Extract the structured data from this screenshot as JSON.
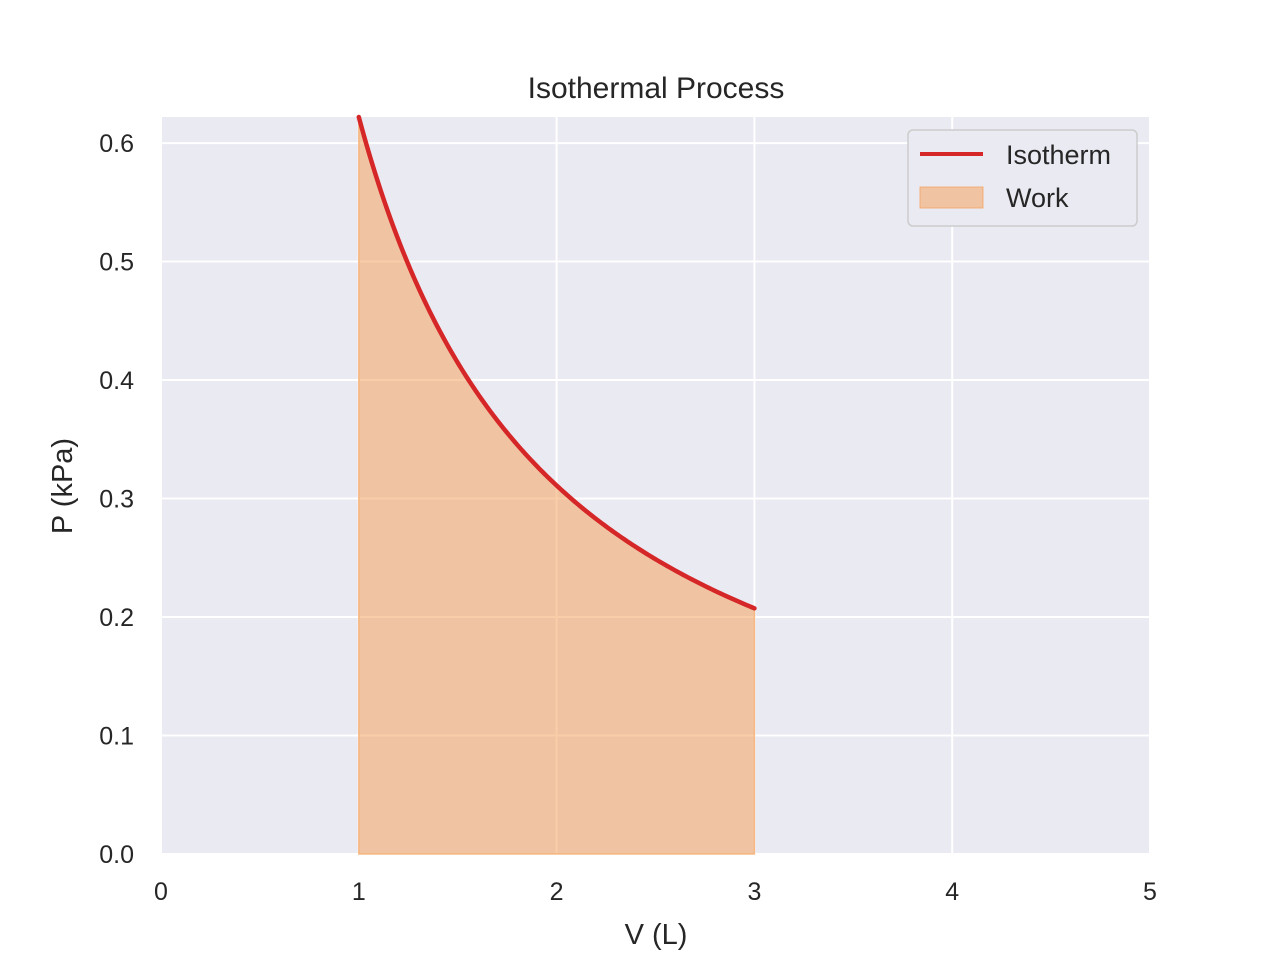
{
  "chart_data": {
    "type": "line",
    "title": "Isothermal Process",
    "xlabel": "V (L)",
    "ylabel": "P (kPa)",
    "xlim": [
      0,
      5
    ],
    "ylim": [
      0,
      0.622
    ],
    "x_ticks": [
      "0",
      "1",
      "2",
      "3",
      "4",
      "5"
    ],
    "y_ticks": [
      "0.0",
      "0.1",
      "0.2",
      "0.3",
      "0.4",
      "0.5",
      "0.6"
    ],
    "grid": true,
    "legend_position": "top-right",
    "series": [
      {
        "name": "Isotherm",
        "kind": "line",
        "color": "#d62728",
        "x": [
          1.0,
          1.1,
          1.2,
          1.3,
          1.4,
          1.5,
          1.6,
          1.7,
          1.8,
          1.9,
          2.0,
          2.1,
          2.2,
          2.3,
          2.4,
          2.5,
          2.6,
          2.7,
          2.8,
          2.9,
          3.0
        ],
        "y": [
          0.622,
          0.565,
          0.518,
          0.478,
          0.444,
          0.415,
          0.389,
          0.366,
          0.346,
          0.327,
          0.311,
          0.296,
          0.283,
          0.27,
          0.259,
          0.249,
          0.239,
          0.23,
          0.222,
          0.214,
          0.207
        ]
      },
      {
        "name": "Work",
        "kind": "area",
        "color": "#f4a460",
        "opacity": 0.55,
        "x_range": [
          1,
          3
        ]
      }
    ]
  }
}
